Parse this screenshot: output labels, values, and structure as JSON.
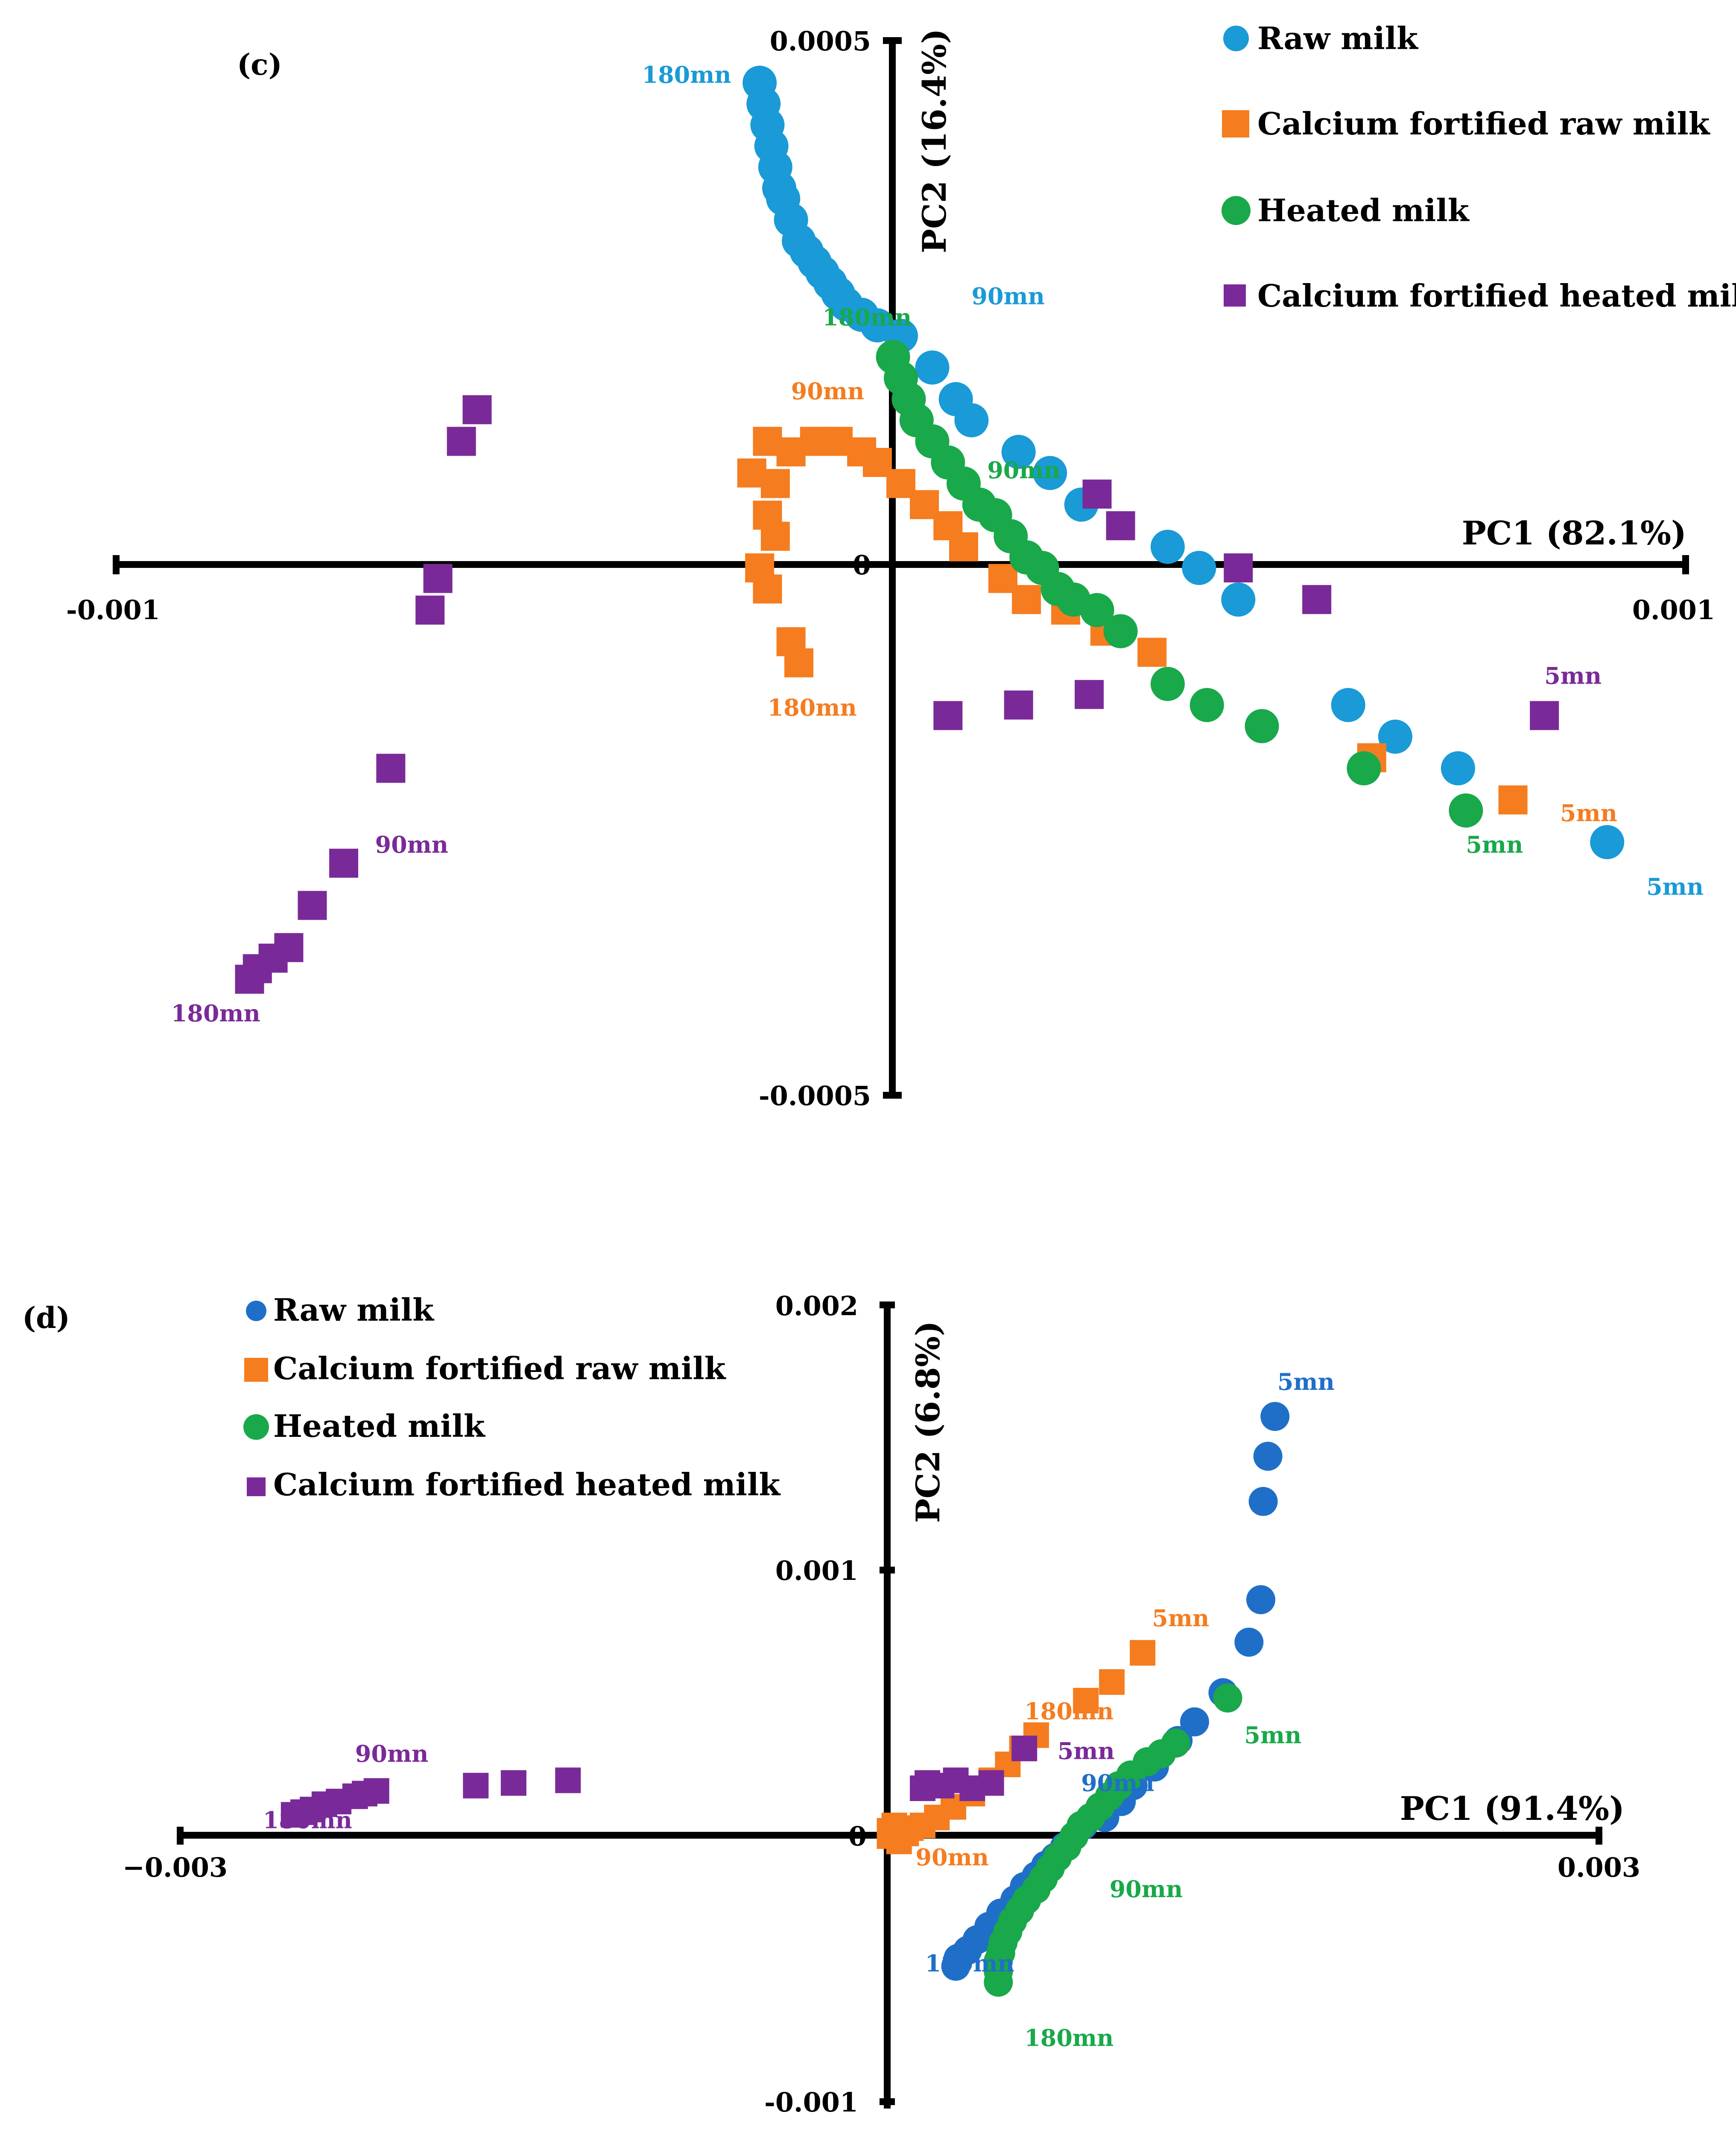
{
  "colors": {
    "raw_c": "#1a9ad6",
    "raw_d": "#1f6fc8",
    "calcium_raw": "#f57c1f",
    "heated": "#19a84a",
    "calcium_heated": "#7a2a98"
  },
  "chart_data": [
    {
      "panel": "(c)",
      "type": "scatter",
      "xlabel": "PC1 (82.1%)",
      "ylabel": "PC2 (16.4%)",
      "xlim": [
        -0.001,
        0.001
      ],
      "ylim": [
        -0.0005,
        0.0005
      ],
      "xtick_labels": {
        "min": "-0.001",
        "max": "0.001"
      },
      "ytick_labels": {
        "max": "0.0005",
        "zero": "0",
        "min": "-0.0005"
      },
      "legend": [
        "Raw milk",
        "Calcium fortified raw milk",
        "Heated milk",
        "Calcium fortified heated milk"
      ],
      "series": [
        {
          "name": "Raw milk",
          "color_key": "raw_c",
          "marker": "circle",
          "points": [
            [
              -0.00018,
              0.00046
            ],
            [
              -0.000175,
              0.00044
            ],
            [
              -0.00017,
              0.00042
            ],
            [
              -0.000165,
              0.0004
            ],
            [
              -0.00016,
              0.00038
            ],
            [
              -0.000155,
              0.00036
            ],
            [
              -0.00015,
              0.00035
            ],
            [
              -0.00014,
              0.00033
            ],
            [
              -0.00013,
              0.00031
            ],
            [
              -0.00012,
              0.0003
            ],
            [
              -0.00011,
              0.00029
            ],
            [
              -0.0001,
              0.00028
            ],
            [
              -9e-05,
              0.00027
            ],
            [
              -8e-05,
              0.00026
            ],
            [
              -7e-05,
              0.00025
            ],
            [
              -5e-05,
              0.00024
            ],
            [
              -3e-05,
              0.00023
            ],
            [
              0.0,
              0.00022
            ],
            [
              4e-05,
              0.00019
            ],
            [
              7e-05,
              0.00016
            ],
            [
              9e-05,
              0.00014
            ],
            [
              0.00015,
              0.00011
            ],
            [
              0.00019,
              9e-05
            ],
            [
              0.00023,
              6e-05
            ],
            [
              0.00034,
              2e-05
            ],
            [
              0.00038,
              -0.0
            ],
            [
              0.00043,
              -3e-05
            ],
            [
              0.00057,
              -0.00013
            ],
            [
              0.00063,
              -0.00016
            ],
            [
              0.00071,
              -0.00019
            ],
            [
              0.0009,
              -0.00026
            ]
          ]
        },
        {
          "name": "Calcium fortified raw milk",
          "color_key": "calcium_raw",
          "marker": "square",
          "points": [
            [
              -0.00017,
              0.00012
            ],
            [
              -0.00014,
              0.00011
            ],
            [
              -0.00011,
              0.00012
            ],
            [
              -8e-05,
              0.00012
            ],
            [
              -5e-05,
              0.00011
            ],
            [
              -3e-05,
              0.0001
            ],
            [
              0.0,
              8e-05
            ],
            [
              3e-05,
              6e-05
            ],
            [
              6e-05,
              4e-05
            ],
            [
              8e-05,
              2e-05
            ],
            [
              -0.00019,
              9e-05
            ],
            [
              -0.00016,
              8e-05
            ],
            [
              -0.00017,
              5e-05
            ],
            [
              -0.00016,
              3e-05
            ],
            [
              -0.00018,
              0.0
            ],
            [
              -0.00017,
              -2e-05
            ],
            [
              -0.00014,
              -7e-05
            ],
            [
              -0.00013,
              -9e-05
            ],
            [
              0.00013,
              -1e-05
            ],
            [
              0.00016,
              -3e-05
            ],
            [
              0.00021,
              -4e-05
            ],
            [
              0.00026,
              -6e-05
            ],
            [
              0.00032,
              -8e-05
            ],
            [
              0.0006,
              -0.00018
            ],
            [
              0.00078,
              -0.00022
            ]
          ]
        },
        {
          "name": "Heated milk",
          "color_key": "heated",
          "marker": "circle",
          "points": [
            [
              -1e-05,
              0.0002
            ],
            [
              0.0,
              0.00018
            ],
            [
              1e-05,
              0.00016
            ],
            [
              2e-05,
              0.00014
            ],
            [
              4e-05,
              0.00012
            ],
            [
              6e-05,
              0.0001
            ],
            [
              8e-05,
              8e-05
            ],
            [
              0.0001,
              6e-05
            ],
            [
              0.00012,
              5e-05
            ],
            [
              0.00014,
              3e-05
            ],
            [
              0.00016,
              1e-05
            ],
            [
              0.00018,
              0.0
            ],
            [
              0.0002,
              -2e-05
            ],
            [
              0.00022,
              -3e-05
            ],
            [
              0.00025,
              -4e-05
            ],
            [
              0.00028,
              -6e-05
            ],
            [
              0.00034,
              -0.00011
            ],
            [
              0.00039,
              -0.00013
            ],
            [
              0.00046,
              -0.00015
            ],
            [
              0.00059,
              -0.00019
            ],
            [
              0.00072,
              -0.00023
            ]
          ]
        },
        {
          "name": "Calcium fortified heated milk",
          "color_key": "calcium_heated",
          "marker": "square",
          "points": [
            [
              -0.00054,
              0.00015
            ],
            [
              -0.00056,
              0.00012
            ],
            [
              -0.00059,
              -1e-05
            ],
            [
              -0.0006,
              -4e-05
            ],
            [
              -0.00065,
              -0.00019
            ],
            [
              -0.00071,
              -0.00028
            ],
            [
              -0.00075,
              -0.00032
            ],
            [
              -0.00078,
              -0.00036
            ],
            [
              -0.0008,
              -0.00037
            ],
            [
              -0.00082,
              -0.00038
            ],
            [
              -0.00083,
              -0.00039
            ],
            [
              0.00025,
              7e-05
            ],
            [
              0.00028,
              4e-05
            ],
            [
              0.00043,
              0.0
            ],
            [
              0.00053,
              -3e-05
            ],
            [
              0.00082,
              -0.00014
            ],
            [
              6e-05,
              -0.00014
            ],
            [
              0.00015,
              -0.00013
            ],
            [
              0.00024,
              -0.00012
            ]
          ]
        }
      ],
      "annotations": [
        {
          "text": "180mn",
          "color_key": "raw_c",
          "x": -0.00033,
          "y": 0.00046
        },
        {
          "text": "90mn",
          "color_key": "raw_c",
          "x": 9e-05,
          "y": 0.00025
        },
        {
          "text": "5mn",
          "color_key": "raw_c",
          "x": 0.00095,
          "y": -0.00031
        },
        {
          "text": "180mn",
          "color_key": "heated",
          "x": -0.0001,
          "y": 0.00023
        },
        {
          "text": "90mn",
          "color_key": "heated",
          "x": 0.00011,
          "y": 8.5e-05
        },
        {
          "text": "5mn",
          "color_key": "heated",
          "x": 0.00072,
          "y": -0.00027
        },
        {
          "text": "90mn",
          "color_key": "calcium_raw",
          "x": -0.00014,
          "y": 0.00016
        },
        {
          "text": "180mn",
          "color_key": "calcium_raw",
          "x": -0.00017,
          "y": -0.00014
        },
        {
          "text": "5mn",
          "color_key": "calcium_raw",
          "x": 0.00084,
          "y": -0.00024
        },
        {
          "text": "90mn",
          "color_key": "calcium_heated",
          "x": -0.00067,
          "y": -0.00027
        },
        {
          "text": "180mn",
          "color_key": "calcium_heated",
          "x": -0.00093,
          "y": -0.00043
        },
        {
          "text": "5mn",
          "color_key": "calcium_heated",
          "x": 0.00082,
          "y": -0.00011
        }
      ]
    },
    {
      "panel": "(d)",
      "type": "scatter",
      "xlabel": "PC1 (91.4%)",
      "ylabel": "PC2 (6.8%)",
      "xlim": [
        -0.003,
        0.003
      ],
      "ylim": [
        -0.001,
        0.002
      ],
      "xtick_labels": {
        "min": "−0.003",
        "max": "0.003"
      },
      "ytick_labels": {
        "max": "0.002",
        "mid": "0.001",
        "zero": "0",
        "min": "-0.001"
      },
      "legend": [
        "Raw milk",
        "Calcium fortified raw milk",
        "Heated milk",
        "Calcium fortified heated milk"
      ],
      "series": [
        {
          "name": "Raw milk",
          "color_key": "raw_d",
          "marker": "circle",
          "points": [
            [
              0.00163,
              0.00158
            ],
            [
              0.0016,
              0.00143
            ],
            [
              0.00158,
              0.00126
            ],
            [
              0.00157,
              0.00089
            ],
            [
              0.00152,
              0.00073
            ],
            [
              0.00141,
              0.00054
            ],
            [
              0.00129,
              0.00043
            ],
            [
              0.00122,
              0.00036
            ],
            [
              0.00112,
              0.00026
            ],
            [
              0.00103,
              0.00019
            ],
            [
              0.00098,
              0.00013
            ],
            [
              0.00091,
              7e-05
            ],
            [
              0.00082,
              4e-05
            ],
            [
              0.00078,
              0.0
            ],
            [
              0.00074,
              -4e-05
            ],
            [
              0.0007,
              -8e-05
            ],
            [
              0.00066,
              -0.00011
            ],
            [
              0.00062,
              -0.00015
            ],
            [
              0.00057,
              -0.00019
            ],
            [
              0.00053,
              -0.00024
            ],
            [
              0.00047,
              -0.00029
            ],
            [
              0.00042,
              -0.00034
            ],
            [
              0.00037,
              -0.00039
            ],
            [
              0.00033,
              -0.00043
            ],
            [
              0.00029,
              -0.00046
            ],
            [
              0.00028,
              -0.00049
            ]
          ]
        },
        {
          "name": "Calcium fortified raw milk",
          "color_key": "calcium_raw",
          "marker": "square",
          "points": [
            [
              0.00107,
              0.00069
            ],
            [
              0.00094,
              0.00058
            ],
            [
              0.00083,
              0.00051
            ],
            [
              0.00062,
              0.00038
            ],
            [
              0.00056,
              0.00033
            ],
            [
              0.0005,
              0.00027
            ],
            [
              0.00043,
              0.00021
            ],
            [
              0.00035,
              0.00016
            ],
            [
              0.00027,
              0.00011
            ],
            [
              0.0002,
              7e-05
            ],
            [
              0.00014,
              4e-05
            ],
            [
              9e-05,
              3e-05
            ],
            [
              5e-05,
              2e-05
            ],
            [
              0.0,
              2e-05
            ],
            [
              0.0,
              0.0
            ],
            [
              4e-05,
              -2e-05
            ],
            [
              2e-05,
              4e-05
            ],
            [
              7e-05,
              1e-05
            ]
          ]
        },
        {
          "name": "Heated milk",
          "color_key": "heated",
          "marker": "circle",
          "points": [
            [
              0.00143,
              0.00052
            ],
            [
              0.00121,
              0.00035
            ],
            [
              0.00115,
              0.00031
            ],
            [
              0.00109,
              0.00028
            ],
            [
              0.00102,
              0.00023
            ],
            [
              0.00097,
              0.00019
            ],
            [
              0.00093,
              0.00015
            ],
            [
              0.00089,
              0.00011
            ],
            [
              0.00085,
              7e-05
            ],
            [
              0.00081,
              4e-05
            ],
            [
              0.00078,
              0.0
            ],
            [
              0.00075,
              -4e-05
            ],
            [
              0.00071,
              -8e-05
            ],
            [
              0.00068,
              -0.00012
            ],
            [
              0.00065,
              -0.00016
            ],
            [
              0.00062,
              -0.0002
            ],
            [
              0.00058,
              -0.00024
            ],
            [
              0.00055,
              -0.00028
            ],
            [
              0.00052,
              -0.00032
            ],
            [
              0.0005,
              -0.00036
            ],
            [
              0.00048,
              -0.0004
            ],
            [
              0.00047,
              -0.00044
            ],
            [
              0.00046,
              -0.00047
            ],
            [
              0.00046,
              -0.00051
            ],
            [
              0.00046,
              -0.00055
            ]
          ]
        },
        {
          "name": "Calcium fortified heated milk",
          "color_key": "calcium_heated",
          "marker": "square",
          "points": [
            [
              0.00057,
              0.00033
            ],
            [
              0.00043,
              0.0002
            ],
            [
              0.00035,
              0.00018
            ],
            [
              0.00028,
              0.00021
            ],
            [
              0.00022,
              0.00019
            ],
            [
              0.00016,
              0.0002
            ],
            [
              0.00014,
              0.00018
            ],
            [
              -0.00136,
              0.00021
            ],
            [
              -0.00159,
              0.0002
            ],
            [
              -0.00175,
              0.00019
            ],
            [
              -0.00217,
              0.00017
            ],
            [
              -0.00222,
              0.00016
            ],
            [
              -0.00226,
              0.00015
            ],
            [
              -0.00233,
              0.00013
            ],
            [
              -0.00239,
              0.00012
            ],
            [
              -0.00244,
              0.0001
            ],
            [
              -0.00248,
              9e-05
            ],
            [
              -0.00252,
              8e-05
            ]
          ]
        }
      ],
      "annotations": [
        {
          "text": "5mn",
          "color_key": "raw_d",
          "x": 0.00164,
          "y": 0.00168
        },
        {
          "text": "90mn",
          "color_key": "raw_d",
          "x": 0.00081,
          "y": 0.00017
        },
        {
          "text": "180mn",
          "color_key": "raw_d",
          "x": 0.00015,
          "y": -0.00051
        },
        {
          "text": "5mn",
          "color_key": "calcium_raw",
          "x": 0.00111,
          "y": 0.00079
        },
        {
          "text": "180mn",
          "color_key": "calcium_raw",
          "x": 0.00057,
          "y": 0.00044
        },
        {
          "text": "90mn",
          "color_key": "calcium_raw",
          "x": 0.00011,
          "y": -0.00011
        },
        {
          "text": "5mn",
          "color_key": "heated",
          "x": 0.0015,
          "y": 0.00035
        },
        {
          "text": "90mn",
          "color_key": "heated",
          "x": 0.00093,
          "y": -0.00023
        },
        {
          "text": "180mn",
          "color_key": "heated",
          "x": 0.00057,
          "y": -0.00079
        },
        {
          "text": "5mn",
          "color_key": "calcium_heated",
          "x": 0.00071,
          "y": 0.00029
        },
        {
          "text": "90mn",
          "color_key": "calcium_heated",
          "x": -0.00226,
          "y": 0.00028
        },
        {
          "text": "180mn",
          "color_key": "calcium_heated",
          "x": -0.00265,
          "y": 3e-05
        }
      ]
    }
  ]
}
